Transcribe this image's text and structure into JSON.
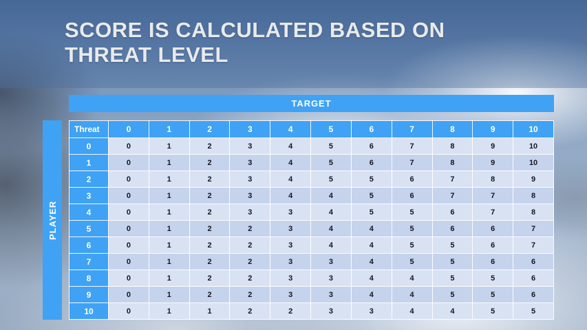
{
  "slide": {
    "title_line1": "SCORE IS CALCULATED BASED ON",
    "title_line2": "THREAT LEVEL"
  },
  "table": {
    "target_label": "TARGET",
    "player_label": "PLAYER",
    "corner_label": "Threat",
    "column_headers": [
      "0",
      "1",
      "2",
      "3",
      "4",
      "5",
      "6",
      "7",
      "8",
      "9",
      "10"
    ],
    "rows": [
      {
        "label": "0",
        "values": [
          0,
          1,
          2,
          3,
          4,
          5,
          6,
          7,
          8,
          9,
          10
        ]
      },
      {
        "label": "1",
        "values": [
          0,
          1,
          2,
          3,
          4,
          5,
          6,
          7,
          8,
          9,
          10
        ]
      },
      {
        "label": "2",
        "values": [
          0,
          1,
          2,
          3,
          4,
          5,
          5,
          6,
          7,
          8,
          9
        ]
      },
      {
        "label": "3",
        "values": [
          0,
          1,
          2,
          3,
          4,
          4,
          5,
          6,
          7,
          7,
          8
        ]
      },
      {
        "label": "4",
        "values": [
          0,
          1,
          2,
          3,
          3,
          4,
          5,
          5,
          6,
          7,
          8
        ]
      },
      {
        "label": "5",
        "values": [
          0,
          1,
          2,
          2,
          3,
          4,
          4,
          5,
          6,
          6,
          7
        ]
      },
      {
        "label": "6",
        "values": [
          0,
          1,
          2,
          2,
          3,
          4,
          4,
          5,
          5,
          6,
          7
        ]
      },
      {
        "label": "7",
        "values": [
          0,
          1,
          2,
          2,
          3,
          3,
          4,
          5,
          5,
          6,
          6
        ]
      },
      {
        "label": "8",
        "values": [
          0,
          1,
          2,
          2,
          3,
          3,
          4,
          4,
          5,
          5,
          6
        ]
      },
      {
        "label": "9",
        "values": [
          0,
          1,
          2,
          2,
          3,
          3,
          4,
          4,
          5,
          5,
          6
        ]
      },
      {
        "label": "10",
        "values": [
          0,
          1,
          1,
          2,
          2,
          3,
          3,
          4,
          4,
          5,
          5
        ]
      }
    ]
  },
  "colors": {
    "header_blue": "#3fa2f4",
    "band_light": "#d9e2f3",
    "band_dark": "#c6d3ed",
    "title_text": "#e9eaec"
  }
}
